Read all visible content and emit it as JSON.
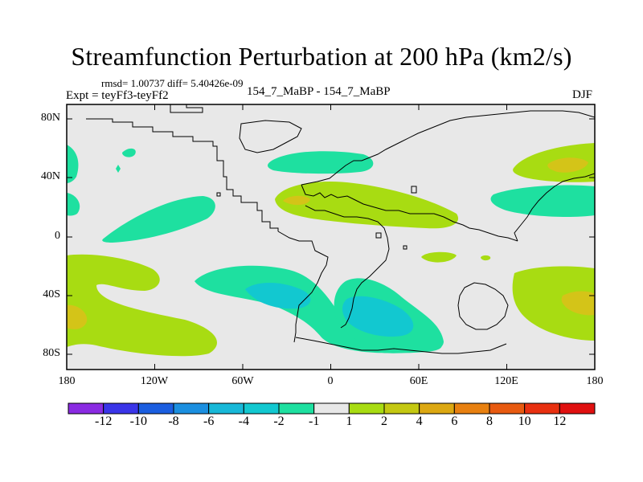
{
  "title": "Streamfunction Perturbation at 200 hPa (km2/s)",
  "stats_text": "rmsd= 1.00737  diff= 5.40426e-09",
  "expt_text": "Expt = teyFf3-teyFf2",
  "experiments_text": "154_7_MaBP - 154_7_MaBP",
  "season": "DJF",
  "y_axis_labels": [
    "80N",
    "40N",
    "0",
    "40S",
    "80S"
  ],
  "x_axis_labels": [
    "180",
    "120W",
    "60W",
    "0",
    "60E",
    "120E",
    "180"
  ],
  "colorbar": {
    "labels": [
      "-12",
      "-10",
      "-8",
      "-6",
      "-4",
      "-2",
      "-1",
      "1",
      "2",
      "4",
      "6",
      "8",
      "10",
      "12"
    ],
    "colors": [
      "#8a2be2",
      "#3a35e8",
      "#1b5ee0",
      "#1b8fe0",
      "#17b8d8",
      "#12c8d0",
      "#1ee0a0",
      "#e8e8e8",
      "#a8dc12",
      "#c4c812",
      "#dca812",
      "#e88010",
      "#e85a10",
      "#e83010",
      "#e01010"
    ]
  },
  "field_colors": {
    "neutral": "#e8e8e8",
    "pos1": "#a8dc12",
    "pos2": "#d4c418",
    "neg1": "#1ee0a0",
    "neg2": "#12c8d0"
  }
}
